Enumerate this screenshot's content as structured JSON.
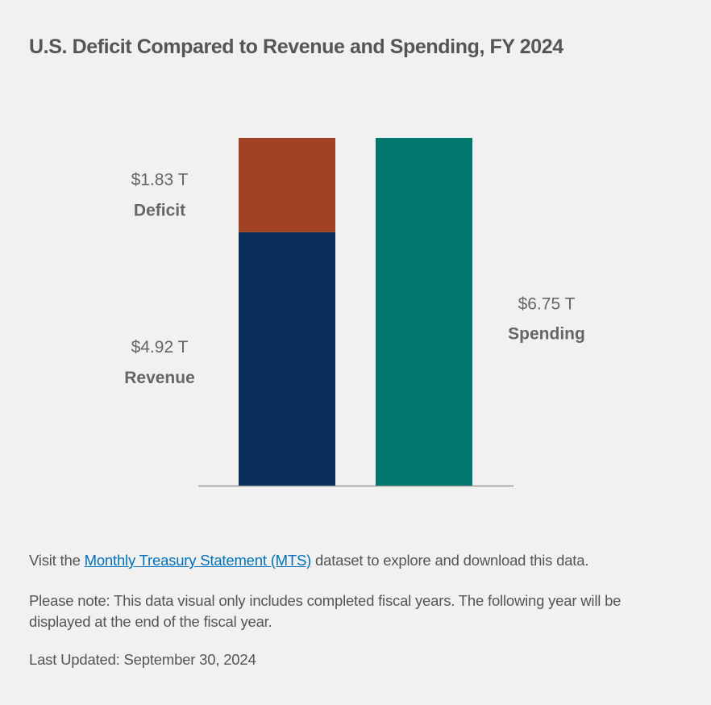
{
  "title": "U.S. Deficit Compared to Revenue and Spending, FY 2024",
  "footer": {
    "visit_prefix": "Visit the ",
    "link_text": "Monthly Treasury Statement (MTS)",
    "visit_suffix": " dataset to explore and download this data.",
    "note": "Please note: This data visual only includes completed fiscal years. The following year will be displayed at the end of the fiscal year.",
    "last_updated": "Last Updated: September 30, 2024"
  },
  "chart_data": {
    "type": "bar",
    "stacked": true,
    "title": "U.S. Deficit Compared to Revenue and Spending, FY 2024",
    "unit": "Trillions of USD",
    "ylim": [
      0,
      6.75
    ],
    "grid": false,
    "categories": [
      "Revenue + Deficit",
      "Spending"
    ],
    "series": [
      {
        "name": "Revenue",
        "values": [
          4.92,
          0
        ],
        "value_label": "$4.92 T",
        "color": "#0a2f5a"
      },
      {
        "name": "Deficit",
        "values": [
          1.83,
          0
        ],
        "value_label": "$1.83 T",
        "color": "#a04223"
      },
      {
        "name": "Spending",
        "values": [
          0,
          6.75
        ],
        "value_label": "$6.75 T",
        "color": "#00766c"
      }
    ],
    "axis_color": "#999999"
  }
}
